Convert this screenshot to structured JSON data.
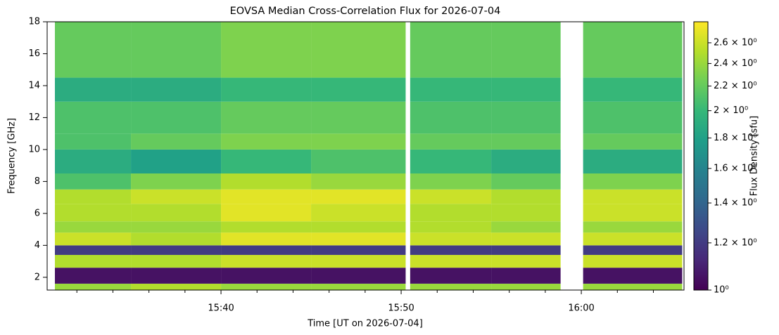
{
  "chart_data": {
    "type": "heatmap",
    "title": "EOVSA Median Cross-Correlation Flux for 2026-07-04",
    "xlabel": "Time [UT on 2026-07-04]",
    "ylabel": "Frequency [GHz]",
    "colorbar_label": "Flux Density [sfu]",
    "colormap": "viridis",
    "color_scale": "log",
    "xlim": [
      930.35,
      965.7
    ],
    "xticks": [
      {
        "value": 940,
        "label": "15:40"
      },
      {
        "value": 950,
        "label": "15:50"
      },
      {
        "value": 960,
        "label": "16:00"
      }
    ],
    "xminorticks": [
      932,
      934,
      936,
      938,
      942,
      944,
      946,
      948,
      952,
      954,
      956,
      958,
      962,
      964
    ],
    "ylim": [
      1.2,
      18
    ],
    "yticks": [
      2,
      4,
      6,
      8,
      10,
      12,
      14,
      16,
      18
    ],
    "clim": [
      1,
      2.82
    ],
    "cticks": [
      {
        "value": 1,
        "label": "10⁰"
      },
      {
        "value": 1.2,
        "label": "1.2 × 10⁰"
      },
      {
        "value": 1.4,
        "label": "1.4 × 10⁰"
      },
      {
        "value": 1.6,
        "label": "1.6 × 10⁰"
      },
      {
        "value": 1.8,
        "label": "1.8 × 10⁰"
      },
      {
        "value": 2,
        "label": "2 × 10⁰"
      },
      {
        "value": 2.2,
        "label": "2.2 × 10⁰"
      },
      {
        "value": 2.4,
        "label": "2.4 × 10⁰"
      },
      {
        "value": 2.6,
        "label": "2.6 × 10⁰"
      }
    ],
    "xbins": [
      930.78,
      935,
      940,
      945,
      950.25,
      950.5,
      955,
      958.85,
      960.1,
      965.6
    ],
    "ybins": [
      1.2,
      1.6,
      2.6,
      3.4,
      4.0,
      4.8,
      5.5,
      6.6,
      7.5,
      8.5,
      10,
      11,
      13,
      14.5,
      18
    ],
    "z": [
      [
        2.4,
        2.5,
        2.4,
        2.4,
        null,
        2.4,
        2.4,
        null,
        2.4
      ],
      [
        1.05,
        1.05,
        1.05,
        1.05,
        null,
        1.05,
        1.05,
        null,
        1.05
      ],
      [
        2.5,
        2.5,
        2.6,
        2.6,
        null,
        2.6,
        2.6,
        null,
        2.6
      ],
      [
        1.2,
        1.2,
        1.2,
        1.2,
        null,
        1.2,
        1.2,
        null,
        1.2
      ],
      [
        2.6,
        2.5,
        2.7,
        2.7,
        null,
        2.6,
        2.6,
        null,
        2.6
      ],
      [
        2.4,
        2.4,
        2.5,
        2.5,
        null,
        2.5,
        2.4,
        null,
        2.4
      ],
      [
        2.5,
        2.5,
        2.7,
        2.6,
        null,
        2.5,
        2.5,
        null,
        2.6
      ],
      [
        2.5,
        2.6,
        2.7,
        2.7,
        null,
        2.6,
        2.5,
        null,
        2.6
      ],
      [
        2.1,
        2.3,
        2.5,
        2.4,
        null,
        2.3,
        2.2,
        null,
        2.3
      ],
      [
        1.9,
        1.8,
        2.0,
        2.1,
        null,
        2.0,
        1.9,
        null,
        1.9
      ],
      [
        2.1,
        2.2,
        2.3,
        2.3,
        null,
        2.2,
        2.2,
        null,
        2.2
      ],
      [
        2.1,
        2.1,
        2.2,
        2.2,
        null,
        2.1,
        2.1,
        null,
        2.1
      ],
      [
        1.9,
        1.9,
        2.0,
        2.0,
        null,
        2.0,
        2.0,
        null,
        2.0
      ],
      [
        2.2,
        2.2,
        2.3,
        2.3,
        null,
        2.2,
        2.2,
        null,
        2.2
      ]
    ]
  }
}
